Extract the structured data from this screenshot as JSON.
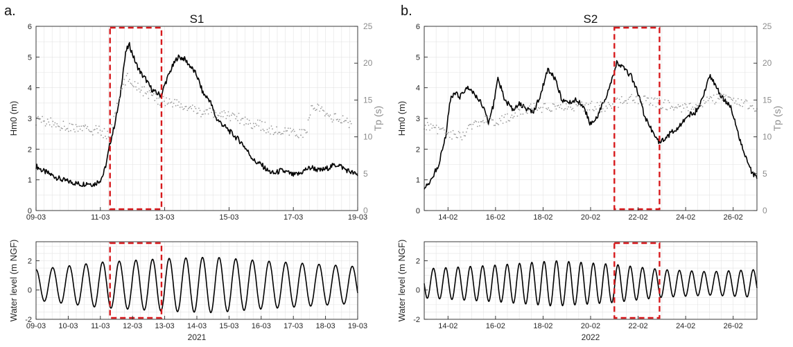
{
  "colors": {
    "primary_line": "#000000",
    "secondary_points": "#9a9a9a",
    "highlight_box": "#d7191c",
    "grid": "#e3e3e3",
    "axis": "#262626"
  },
  "chart_data": [
    {
      "id": "S1_top",
      "panel_label": "a.",
      "title": "S1",
      "type": "line",
      "x_unit": "day",
      "xlim": [
        0,
        10
      ],
      "x_ticks": [
        0,
        2,
        4,
        6,
        8,
        10
      ],
      "x_tick_labels": [
        "09-03",
        "11-03",
        "13-03",
        "15-03",
        "17-03",
        "19-03"
      ],
      "ylim": [
        0,
        6
      ],
      "y_ticks": [
        0,
        1,
        2,
        3,
        4,
        5,
        6
      ],
      "ylabel": "Hm0 (m)",
      "y2lim": [
        0,
        25
      ],
      "y2_ticks": [
        0,
        5,
        10,
        15,
        20,
        25
      ],
      "y2label": "Tp (s)",
      "grid": true,
      "highlight_box": [
        2.3,
        3.9
      ],
      "series": [
        {
          "name": "Hm0 (m)",
          "axis": "left",
          "style": "line",
          "x": [
            0,
            0.2,
            0.4,
            0.6,
            0.8,
            1.0,
            1.2,
            1.4,
            1.6,
            1.8,
            2.0,
            2.1,
            2.2,
            2.3,
            2.4,
            2.5,
            2.6,
            2.7,
            2.8,
            2.9,
            3.0,
            3.1,
            3.2,
            3.3,
            3.4,
            3.5,
            3.6,
            3.7,
            3.8,
            3.9,
            4.0,
            4.2,
            4.4,
            4.6,
            4.8,
            5.0,
            5.2,
            5.4,
            5.6,
            5.8,
            6.0,
            6.2,
            6.4,
            6.6,
            6.8,
            7.0,
            7.2,
            7.4,
            7.6,
            7.8,
            8.0,
            8.2,
            8.4,
            8.6,
            8.8,
            9.0,
            9.2,
            9.4,
            9.6,
            9.8,
            10.0
          ],
          "y": [
            1.45,
            1.3,
            1.2,
            1.1,
            1.0,
            0.95,
            0.9,
            0.85,
            0.9,
            0.85,
            1.0,
            1.2,
            1.6,
            2.2,
            2.6,
            3.1,
            3.6,
            4.5,
            5.2,
            5.4,
            5.1,
            4.8,
            4.6,
            4.4,
            4.3,
            4.1,
            3.95,
            3.85,
            3.8,
            3.75,
            4.1,
            4.6,
            5.0,
            4.95,
            4.7,
            4.4,
            3.8,
            3.6,
            3.0,
            2.8,
            2.6,
            2.4,
            2.2,
            1.9,
            1.6,
            1.5,
            1.3,
            1.2,
            1.3,
            1.25,
            1.15,
            1.2,
            1.35,
            1.4,
            1.3,
            1.35,
            1.45,
            1.5,
            1.35,
            1.25,
            1.15
          ]
        },
        {
          "name": "Tp (s)",
          "axis": "right",
          "style": "dots",
          "x": [
            0.0,
            0.4,
            0.8,
            1.2,
            1.6,
            2.0,
            2.3,
            2.5,
            2.8,
            3.0,
            3.4,
            3.8,
            4.2,
            4.6,
            5.0,
            5.4,
            5.8,
            6.2,
            6.6,
            7.0,
            7.4,
            7.8,
            8.4,
            8.6,
            9.0,
            9.4,
            9.8
          ],
          "y": [
            12.3,
            12.0,
            11.5,
            11.2,
            11.0,
            10.8,
            10.0,
            14.0,
            18.0,
            17.5,
            16.0,
            15.0,
            14.8,
            14.0,
            13.5,
            13.2,
            13.0,
            12.8,
            12.0,
            11.5,
            10.8,
            10.5,
            10.5,
            14.5,
            13.0,
            12.4,
            11.8
          ]
        }
      ]
    },
    {
      "id": "S1_bottom",
      "type": "line",
      "x_unit": "day",
      "xlim": [
        0,
        10
      ],
      "x_ticks": [
        0,
        1,
        2,
        3,
        4,
        5,
        6,
        7,
        8,
        9,
        10
      ],
      "x_tick_labels": [
        "09-03",
        "10-03",
        "11-03",
        "12-03",
        "13-03",
        "14-03",
        "15-03",
        "16-03",
        "17-03",
        "18-03",
        "19-03"
      ],
      "x_caption": "2021",
      "ylim": [
        -2,
        3.3
      ],
      "y_ticks": [
        -2,
        0,
        2
      ],
      "ylabel": "Water level (m NGF)",
      "grid": true,
      "highlight_box": [
        2.3,
        3.9
      ],
      "series": [
        {
          "name": "Water level",
          "style": "tide",
          "period_days": 0.5175,
          "phase": 0.0,
          "mean": 0.35,
          "amplitude_samples": {
            "x": [
              0,
              2,
              4,
              5.5,
              7,
              10
            ],
            "y": [
              1.05,
              1.55,
              1.8,
              1.9,
              1.65,
              1.25
            ]
          }
        }
      ]
    },
    {
      "id": "S2_top",
      "panel_label": "b.",
      "title": "S2",
      "type": "line",
      "x_unit": "day",
      "xlim": [
        0,
        14
      ],
      "x_ticks": [
        1,
        3,
        5,
        7,
        9,
        11,
        13
      ],
      "x_tick_labels": [
        "14-02",
        "16-02",
        "18-02",
        "20-02",
        "22-02",
        "24-02",
        "26-02"
      ],
      "ylim": [
        0,
        6
      ],
      "y_ticks": [
        0,
        1,
        2,
        3,
        4,
        5,
        6
      ],
      "ylabel": "Hm0 (m)",
      "y2lim": [
        0,
        25
      ],
      "y2_ticks": [
        0,
        5,
        10,
        15,
        20,
        25
      ],
      "y2label": "Tp (s)",
      "grid": true,
      "highlight_box": [
        8.0,
        9.9
      ],
      "series": [
        {
          "name": "Hm0 (m)",
          "axis": "left",
          "style": "line",
          "x": [
            0,
            0.3,
            0.6,
            0.9,
            1.1,
            1.3,
            1.5,
            1.8,
            2.1,
            2.4,
            2.7,
            2.9,
            3.1,
            3.4,
            3.7,
            4.0,
            4.3,
            4.6,
            4.9,
            5.2,
            5.5,
            5.8,
            6.1,
            6.4,
            6.7,
            7.0,
            7.3,
            7.6,
            7.9,
            8.1,
            8.4,
            8.7,
            9.0,
            9.3,
            9.6,
            9.9,
            10.2,
            10.5,
            10.8,
            11.1,
            11.4,
            11.7,
            12.0,
            12.3,
            12.6,
            12.9,
            13.2,
            13.5,
            13.8,
            14.0
          ],
          "y": [
            0.75,
            1.0,
            1.5,
            2.4,
            3.6,
            3.85,
            3.7,
            4.0,
            3.8,
            3.5,
            2.9,
            3.4,
            4.3,
            3.6,
            3.3,
            3.5,
            3.3,
            3.2,
            3.8,
            4.6,
            4.3,
            3.6,
            3.5,
            3.6,
            3.4,
            2.8,
            3.1,
            3.6,
            4.3,
            4.8,
            4.6,
            4.4,
            3.8,
            3.0,
            2.6,
            2.2,
            2.4,
            2.6,
            2.8,
            3.1,
            3.2,
            3.6,
            4.4,
            4.0,
            3.6,
            3.4,
            2.5,
            1.8,
            1.2,
            1.1
          ]
        },
        {
          "name": "Tp (s)",
          "axis": "right",
          "style": "dots",
          "x": [
            0.0,
            0.5,
            1.0,
            1.5,
            2.0,
            2.5,
            3.0,
            3.5,
            4.0,
            4.5,
            5.0,
            5.5,
            6.0,
            6.5,
            7.0,
            7.5,
            8.0,
            8.5,
            9.0,
            9.5,
            10.0,
            10.5,
            11.0,
            11.5,
            12.0,
            12.5,
            13.0,
            13.5,
            14.0
          ],
          "y": [
            11.5,
            11.2,
            10.5,
            10.0,
            11.5,
            12.2,
            12.0,
            12.5,
            13.5,
            13.8,
            14.0,
            14.2,
            14.0,
            14.1,
            14.3,
            14.0,
            14.5,
            15.0,
            15.2,
            14.8,
            14.5,
            14.2,
            14.0,
            14.6,
            15.0,
            15.3,
            15.0,
            14.5,
            14.0
          ]
        }
      ]
    },
    {
      "id": "S2_bottom",
      "type": "line",
      "x_unit": "day",
      "xlim": [
        0,
        14
      ],
      "x_ticks": [
        1,
        3,
        5,
        7,
        9,
        11,
        13
      ],
      "x_tick_labels": [
        "14-02",
        "16-02",
        "18-02",
        "20-02",
        "22-02",
        "24-02",
        "26-02"
      ],
      "x_caption": "2022",
      "ylim": [
        -2,
        3.3
      ],
      "y_ticks": [
        -2,
        0,
        2
      ],
      "ylabel": "Water level (m NGF)",
      "grid": true,
      "highlight_box": [
        8.0,
        9.9
      ],
      "series": [
        {
          "name": "Water level",
          "style": "tide",
          "period_days": 0.5175,
          "phase": 0.25,
          "mean": 0.45,
          "amplitude_samples": {
            "x": [
              0,
              3,
              5.5,
              8,
              10,
              12,
              14
            ],
            "y": [
              1.0,
              1.25,
              1.55,
              1.3,
              0.95,
              0.8,
              0.95
            ]
          }
        }
      ]
    }
  ]
}
